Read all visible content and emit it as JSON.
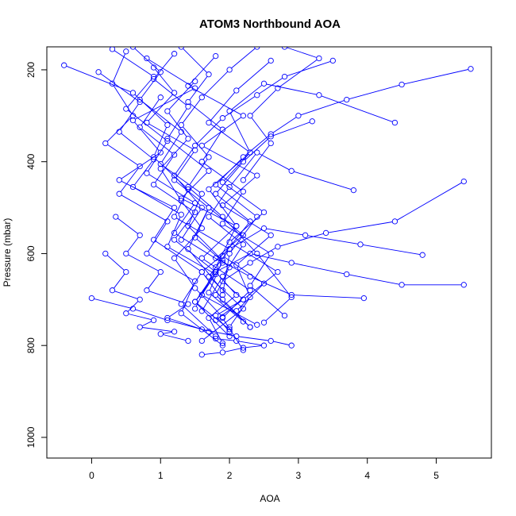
{
  "chart_data": {
    "type": "line",
    "title": "ATOM3 Northbound AOA",
    "xlabel": "AOA",
    "ylabel": "Pressure (mbar)",
    "xlim": [
      -0.65,
      5.8
    ],
    "ylim": [
      1045,
      150
    ],
    "y_reversed": true,
    "x_ticks": [
      0,
      1,
      2,
      3,
      4,
      5
    ],
    "y_ticks": [
      200,
      400,
      600,
      800,
      1000
    ],
    "marker": "open-circle",
    "grid": false,
    "legend": "none",
    "color": "#0000ff",
    "series": [
      {
        "x": [
          0.5,
          0.3,
          0.6,
          0.2,
          0.7,
          0.4,
          1.1,
          0.8,
          1.5,
          1.3,
          1.9
        ],
        "y": [
          160,
          230,
          300,
          360,
          410,
          470,
          530,
          600,
          660,
          730,
          800
        ]
      },
      {
        "x": [
          1.2,
          0.9,
          1.4,
          1.1,
          1.7,
          1.3,
          2.1,
          1.6,
          2.3,
          1.9,
          2.2
        ],
        "y": [
          165,
          220,
          280,
          350,
          420,
          480,
          540,
          610,
          680,
          740,
          810
        ]
      },
      {
        "x": [
          0.8,
          1.5,
          0.6,
          1.0,
          0.4,
          1.2,
          0.9,
          1.6,
          1.3,
          1.8
        ],
        "y": [
          175,
          240,
          310,
          380,
          440,
          500,
          570,
          640,
          710,
          780
        ]
      },
      {
        "x": [
          -0.4,
          0.6,
          1.1,
          0.9,
          1.4,
          1.2,
          2.0,
          1.7,
          2.2,
          1.6
        ],
        "y": [
          190,
          250,
          320,
          390,
          460,
          520,
          590,
          650,
          720,
          790
        ]
      },
      {
        "x": [
          0.1,
          0.7,
          0.4,
          0.9,
          0.6,
          1.3,
          1.1,
          1.8,
          1.5,
          2.0
        ],
        "y": [
          205,
          270,
          335,
          395,
          455,
          515,
          585,
          645,
          705,
          765
        ]
      },
      {
        "x": [
          1.8,
          1.4,
          2.2,
          1.6,
          2.4,
          1.9,
          2.6,
          2.1,
          2.3,
          2.0
        ],
        "y": [
          170,
          235,
          300,
          365,
          430,
          495,
          560,
          625,
          695,
          760
        ]
      },
      {
        "x": [
          2.6,
          2.1,
          1.7,
          2.3,
          1.9,
          2.5,
          2.0,
          2.7,
          2.2,
          1.8
        ],
        "y": [
          180,
          245,
          315,
          380,
          445,
          510,
          575,
          640,
          700,
          745
        ]
      },
      {
        "x": [
          0.3,
          0.9,
          0.5,
          1.1,
          0.8,
          1.5,
          1.2,
          1.9,
          1.6,
          2.4
        ],
        "y": [
          155,
          215,
          285,
          355,
          425,
          490,
          555,
          620,
          690,
          755
        ]
      },
      {
        "x": [
          5.5,
          4.5,
          3.7,
          3.0,
          2.6,
          2.2,
          1.8,
          2.4,
          2.0,
          1.9
        ],
        "y": [
          198,
          232,
          265,
          300,
          340,
          390,
          450,
          520,
          600,
          690
        ]
      },
      {
        "x": [
          4.4,
          3.3,
          2.5,
          2.0,
          2.3,
          1.7,
          2.1,
          1.8,
          1.5
        ],
        "y": [
          315,
          255,
          230,
          290,
          380,
          460,
          540,
          630,
          720
        ]
      },
      {
        "x": [
          5.4,
          4.4,
          3.4,
          2.7,
          2.3,
          1.9,
          2.2,
          1.8,
          2.0
        ],
        "y": [
          443,
          530,
          555,
          585,
          620,
          660,
          700,
          735,
          770
        ]
      },
      {
        "x": [
          3.8,
          2.9,
          2.4,
          2.0,
          1.7,
          2.2,
          1.9,
          1.6
        ],
        "y": [
          462,
          420,
          380,
          455,
          520,
          580,
          650,
          725
        ]
      },
      {
        "x": [
          5.4,
          4.5,
          3.7,
          2.9,
          2.3,
          1.8,
          2.1,
          1.7,
          1.9
        ],
        "y": [
          668,
          668,
          645,
          620,
          600,
          640,
          690,
          740,
          795
        ]
      },
      {
        "x": [
          4.8,
          3.9,
          3.1,
          2.5,
          2.0,
          1.6,
          1.9,
          2.3
        ],
        "y": [
          603,
          580,
          560,
          545,
          590,
          640,
          700,
          760
        ]
      },
      {
        "x": [
          3.95,
          2.9,
          2.3,
          1.8,
          2.2,
          1.7,
          1.4,
          1.9
        ],
        "y": [
          697,
          690,
          650,
          610,
          560,
          500,
          590,
          680
        ]
      },
      {
        "x": [
          0.0,
          0.6,
          1.1,
          1.6,
          2.1,
          2.6,
          2.9
        ],
        "y": [
          697,
          720,
          745,
          765,
          780,
          790,
          800
        ]
      },
      {
        "x": [
          1.6,
          1.9,
          2.2,
          2.5,
          2.1,
          1.8
        ],
        "y": [
          820,
          815,
          805,
          800,
          790,
          785
        ]
      },
      {
        "x": [
          0.2,
          0.5,
          0.3,
          0.7,
          0.5,
          0.9,
          0.7,
          1.2,
          1.0,
          1.4
        ],
        "y": [
          600,
          640,
          680,
          700,
          730,
          745,
          760,
          770,
          775,
          790
        ]
      },
      {
        "x": [
          1.3,
          1.7,
          1.4,
          1.9,
          1.6,
          2.2,
          1.9,
          2.6,
          2.3,
          2.8
        ],
        "y": [
          150,
          210,
          270,
          330,
          400,
          465,
          535,
          600,
          670,
          735
        ]
      },
      {
        "x": [
          0.6,
          1.0,
          0.7,
          1.3,
          1.0,
          1.6,
          1.4,
          1.9,
          1.7,
          2.2
        ],
        "y": [
          150,
          205,
          265,
          335,
          405,
          470,
          540,
          615,
          685,
          748
        ]
      },
      {
        "x": [
          3.5,
          2.8,
          2.4,
          1.9,
          1.5,
          1.2,
          1.6,
          1.3
        ],
        "y": [
          180,
          215,
          255,
          305,
          365,
          430,
          500,
          570
        ]
      },
      {
        "x": [
          2.4,
          2.0,
          1.6,
          1.3,
          1.7,
          1.4,
          1.9,
          2.4,
          2.9,
          2.5
        ],
        "y": [
          150,
          200,
          260,
          320,
          390,
          455,
          520,
          600,
          695,
          750
        ]
      },
      {
        "x": [
          0.9,
          1.2,
          0.8,
          1.5,
          1.2,
          1.7,
          1.5,
          2.0,
          1.8,
          2.3
        ],
        "y": [
          195,
          250,
          315,
          375,
          440,
          500,
          565,
          630,
          690,
          760
        ]
      },
      {
        "x": [
          1.0,
          0.7,
          1.2,
          0.9,
          1.5,
          1.2,
          1.8,
          1.5,
          2.0
        ],
        "y": [
          260,
          325,
          385,
          450,
          510,
          570,
          640,
          705,
          780
        ]
      },
      {
        "x": [
          3.2,
          2.6,
          2.2,
          1.8,
          2.3,
          1.9,
          2.5,
          2.1
        ],
        "y": [
          312,
          345,
          400,
          470,
          530,
          605,
          665,
          725
        ]
      },
      {
        "x": [
          0.35,
          0.7,
          0.5,
          1.0,
          0.8,
          1.4,
          1.1,
          1.7
        ],
        "y": [
          520,
          560,
          600,
          640,
          680,
          710,
          740,
          770
        ]
      },
      {
        "x": [
          2.8,
          3.3,
          2.7,
          2.3,
          2.6,
          2.2
        ],
        "y": [
          150,
          175,
          240,
          300,
          360,
          440
        ]
      },
      {
        "x": [
          1.5,
          1.1,
          1.4,
          1.0,
          1.3,
          1.6,
          1.2,
          1.5,
          1.9
        ],
        "y": [
          225,
          290,
          350,
          415,
          485,
          545,
          610,
          675,
          738
        ]
      }
    ]
  }
}
